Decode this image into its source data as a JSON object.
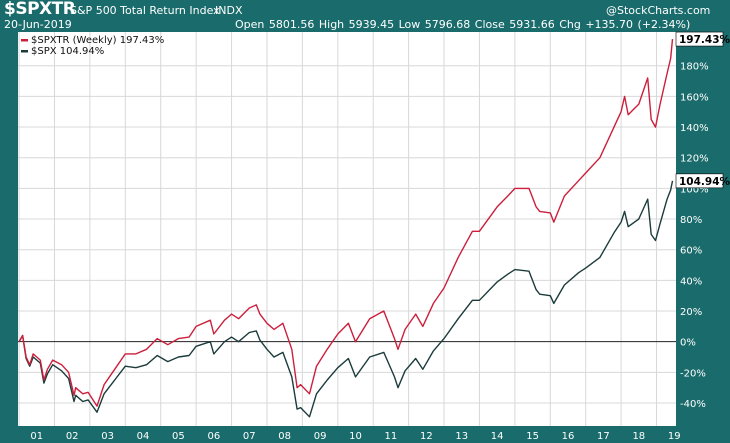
{
  "header": {
    "symbol": "$SPXTR",
    "name": "S&P 500 Total Return Index",
    "exchange": "INDX",
    "date": "20-Jun-2019",
    "ohlc": "Open 5801.56  High 5939.45  Low 5796.68  Close 5931.66  Chg +135.70 (+2.34%)",
    "brand": "@StockCharts.com"
  },
  "colors": {
    "frame": "#1a6b6b",
    "spxtr": "#cc1f3c",
    "spx": "#1c3b3b",
    "grid": "#d8d8d8",
    "zero_line": "#222222"
  },
  "chart_data": {
    "type": "line",
    "x_tick_labels": [
      "01",
      "02",
      "03",
      "04",
      "05",
      "06",
      "07",
      "08",
      "09",
      "10",
      "11",
      "12",
      "13",
      "14",
      "15",
      "16",
      "17",
      "18",
      "19"
    ],
    "y_tick_labels": [
      "-40%",
      "-20%",
      "0%",
      "20%",
      "40%",
      "60%",
      "80%",
      "100%",
      "120%",
      "140%",
      "160%",
      "180%"
    ],
    "ylim": [
      -55,
      202
    ],
    "xlim": [
      2000.97,
      2019.55
    ],
    "grid": true,
    "legend_placement": "top-left",
    "series": [
      {
        "name": "$SPXTR (Weekly) 197.43%",
        "legend": "$SPXTR (Weekly) 197.43%",
        "last_label": "197.43%",
        "x": [
          2001.0,
          2001.1,
          2001.2,
          2001.3,
          2001.4,
          2001.6,
          2001.7,
          2001.8,
          2001.95,
          2002.2,
          2002.4,
          2002.55,
          2002.6,
          2002.8,
          2002.95,
          2003.2,
          2003.4,
          2003.7,
          2004.0,
          2004.3,
          2004.6,
          2004.9,
          2005.2,
          2005.5,
          2005.8,
          2006.0,
          2006.4,
          2006.5,
          2006.8,
          2007.0,
          2007.2,
          2007.5,
          2007.7,
          2007.8,
          2008.0,
          2008.2,
          2008.45,
          2008.7,
          2008.85,
          2008.95,
          2009.2,
          2009.4,
          2009.7,
          2010.0,
          2010.3,
          2010.5,
          2010.9,
          2011.3,
          2011.6,
          2011.7,
          2011.9,
          2012.2,
          2012.4,
          2012.7,
          2013.0,
          2013.4,
          2013.8,
          2014.0,
          2014.5,
          2014.8,
          2015.0,
          2015.4,
          2015.6,
          2015.7,
          2016.0,
          2016.1,
          2016.4,
          2016.8,
          2017.0,
          2017.4,
          2017.8,
          2018.0,
          2018.1,
          2018.2,
          2018.5,
          2018.75,
          2018.85,
          2018.97,
          2019.1,
          2019.3,
          2019.4,
          2019.45
        ],
        "y": [
          0,
          4,
          -10,
          -15,
          -8,
          -12,
          -25,
          -18,
          -12,
          -15,
          -20,
          -35,
          -30,
          -34,
          -33,
          -42,
          -28,
          -18,
          -8,
          -8,
          -5,
          2,
          -2,
          2,
          3,
          10,
          14,
          5,
          14,
          18,
          15,
          22,
          24,
          18,
          12,
          8,
          12,
          -5,
          -30,
          -28,
          -34,
          -16,
          -5,
          5,
          12,
          0,
          15,
          20,
          2,
          -5,
          8,
          18,
          10,
          25,
          35,
          55,
          72,
          72,
          88,
          95,
          100,
          100,
          88,
          85,
          84,
          78,
          95,
          105,
          110,
          120,
          140,
          150,
          160,
          148,
          155,
          172,
          145,
          140,
          155,
          175,
          185,
          197.4
        ]
      },
      {
        "name": "$SPX 104.94%",
        "legend": "$SPX 104.94%",
        "last_label": "104.94%",
        "x": [
          2001.0,
          2001.1,
          2001.2,
          2001.3,
          2001.4,
          2001.6,
          2001.7,
          2001.8,
          2001.95,
          2002.2,
          2002.4,
          2002.55,
          2002.6,
          2002.8,
          2002.95,
          2003.2,
          2003.4,
          2003.7,
          2004.0,
          2004.3,
          2004.6,
          2004.9,
          2005.2,
          2005.5,
          2005.8,
          2006.0,
          2006.4,
          2006.5,
          2006.8,
          2007.0,
          2007.2,
          2007.5,
          2007.7,
          2007.8,
          2008.0,
          2008.2,
          2008.45,
          2008.7,
          2008.85,
          2008.95,
          2009.2,
          2009.4,
          2009.7,
          2010.0,
          2010.3,
          2010.5,
          2010.9,
          2011.3,
          2011.6,
          2011.7,
          2011.9,
          2012.2,
          2012.4,
          2012.7,
          2013.0,
          2013.4,
          2013.8,
          2014.0,
          2014.5,
          2014.8,
          2015.0,
          2015.4,
          2015.6,
          2015.7,
          2016.0,
          2016.1,
          2016.4,
          2016.8,
          2017.0,
          2017.4,
          2017.8,
          2018.0,
          2018.1,
          2018.2,
          2018.5,
          2018.75,
          2018.85,
          2018.97,
          2019.1,
          2019.3,
          2019.4,
          2019.45
        ],
        "y": [
          0,
          4,
          -11,
          -16,
          -10,
          -14,
          -27,
          -21,
          -15,
          -19,
          -24,
          -39,
          -35,
          -39,
          -38,
          -46,
          -34,
          -25,
          -16,
          -17,
          -15,
          -9,
          -13,
          -10,
          -9,
          -3,
          0,
          -8,
          0,
          3,
          0,
          6,
          7,
          1,
          -5,
          -10,
          -7,
          -23,
          -44,
          -43,
          -49,
          -34,
          -25,
          -17,
          -11,
          -23,
          -10,
          -7,
          -23,
          -30,
          -19,
          -11,
          -18,
          -6,
          2,
          15,
          27,
          27,
          39,
          44,
          47,
          46,
          34,
          31,
          30,
          25,
          37,
          45,
          48,
          55,
          71,
          78,
          85,
          75,
          80,
          93,
          70,
          66,
          77,
          93,
          99,
          104.9
        ]
      }
    ]
  }
}
